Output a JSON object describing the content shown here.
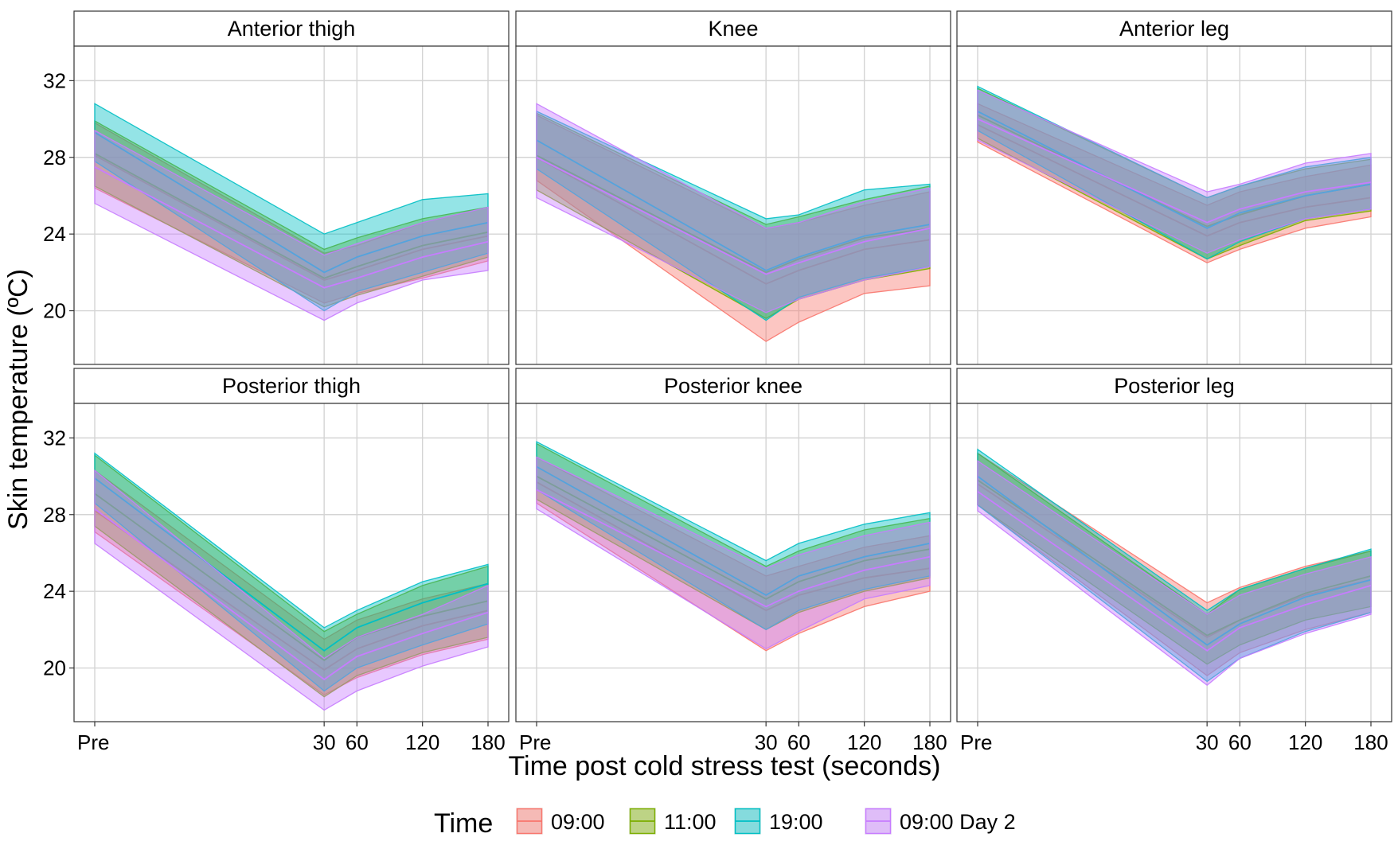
{
  "chart_data": {
    "type": "area",
    "title": "",
    "xlabel": "Time post cold stress test (seconds)",
    "ylabel": "Skin temperature (ºC)",
    "ylim": [
      17.2,
      33.8
    ],
    "y_ticks": [
      20,
      24,
      28,
      32
    ],
    "x_positions": [
      0,
      30,
      60,
      120,
      180
    ],
    "x_tick_labels": [
      "Pre",
      "30",
      "60",
      "120",
      "180"
    ],
    "x_display_positions": [
      -180,
      30,
      60,
      120,
      180
    ],
    "legend": {
      "title": "Time",
      "position": "bottom",
      "entries": [
        {
          "name": "09:00",
          "fill": "#F8766D",
          "stroke": "#F8766D"
        },
        {
          "name": "11:00",
          "fill": "#7CAE00",
          "stroke": "#7CAE00"
        },
        {
          "name": "19:00",
          "fill": "#00BFC4",
          "stroke": "#00BFC4"
        },
        {
          "name": "09:00 Day 2",
          "fill": "#C77CFF",
          "stroke": "#C77CFF"
        }
      ]
    },
    "panels": [
      {
        "title": "Anterior thigh",
        "series": [
          {
            "name": "09:00",
            "mean": [
              28.1,
              21.6,
              22.1,
              23.2,
              23.9
            ],
            "lower": [
              26.4,
              20.4,
              20.9,
              21.7,
              22.6
            ],
            "upper": [
              29.8,
              23.0,
              23.4,
              24.6,
              25.4
            ]
          },
          {
            "name": "11:00",
            "mean": [
              28.2,
              21.7,
              22.3,
              23.4,
              24.1
            ],
            "lower": [
              26.5,
              20.2,
              20.8,
              21.8,
              22.8
            ],
            "upper": [
              29.9,
              23.2,
              23.8,
              24.8,
              25.4
            ]
          },
          {
            "name": "19:00",
            "mean": [
              29.3,
              22.0,
              22.8,
              23.9,
              24.6
            ],
            "lower": [
              27.8,
              20.0,
              21.0,
              22.0,
              23.0
            ],
            "upper": [
              30.8,
              24.0,
              24.6,
              25.8,
              26.1
            ]
          },
          {
            "name": "09:00 Day 2",
            "mean": [
              27.5,
              21.2,
              21.7,
              22.8,
              23.6
            ],
            "lower": [
              25.6,
              19.5,
              20.4,
              21.6,
              22.1
            ],
            "upper": [
              29.4,
              22.9,
              23.5,
              24.6,
              25.4
            ]
          }
        ]
      },
      {
        "title": "Knee",
        "series": [
          {
            "name": "09:00",
            "mean": [
              28.0,
              21.4,
              22.1,
              23.2,
              23.7
            ],
            "lower": [
              26.8,
              18.4,
              19.4,
              20.9,
              21.3
            ],
            "upper": [
              30.2,
              24.3,
              24.6,
              25.5,
              26.2
            ]
          },
          {
            "name": "11:00",
            "mean": [
              28.1,
              22.0,
              22.7,
              23.8,
              24.3
            ],
            "lower": [
              26.3,
              19.6,
              20.6,
              21.6,
              22.2
            ],
            "upper": [
              30.3,
              24.5,
              24.9,
              25.8,
              26.5
            ]
          },
          {
            "name": "19:00",
            "mean": [
              28.9,
              22.1,
              22.8,
              23.9,
              24.5
            ],
            "lower": [
              27.4,
              19.5,
              20.7,
              21.7,
              22.3
            ],
            "upper": [
              30.4,
              24.8,
              25.0,
              26.3,
              26.6
            ]
          },
          {
            "name": "09:00 Day 2",
            "mean": [
              28.0,
              21.9,
              22.5,
              23.6,
              24.3
            ],
            "lower": [
              25.9,
              19.9,
              20.6,
              21.6,
              22.3
            ],
            "upper": [
              30.8,
              24.3,
              24.6,
              25.7,
              26.4
            ]
          }
        ]
      },
      {
        "title": "Anterior leg",
        "series": [
          {
            "name": "09:00",
            "mean": [
              29.7,
              23.9,
              24.6,
              25.4,
              25.9
            ],
            "lower": [
              28.8,
              22.5,
              23.2,
              24.3,
              24.9
            ],
            "upper": [
              30.8,
              25.5,
              26.2,
              27.0,
              27.6
            ]
          },
          {
            "name": "11:00",
            "mean": [
              30.2,
              24.4,
              25.0,
              26.0,
              26.6
            ],
            "lower": [
              29.0,
              22.7,
              23.4,
              24.7,
              25.2
            ],
            "upper": [
              31.6,
              25.9,
              26.5,
              27.4,
              27.9
            ]
          },
          {
            "name": "19:00",
            "mean": [
              30.4,
              24.3,
              25.1,
              26.0,
              26.6
            ],
            "lower": [
              29.4,
              22.7,
              23.6,
              24.8,
              25.3
            ],
            "upper": [
              31.7,
              25.9,
              26.5,
              27.5,
              28.0
            ]
          },
          {
            "name": "09:00 Day 2",
            "mean": [
              30.0,
              24.6,
              25.3,
              26.2,
              26.7
            ],
            "lower": [
              28.9,
              23.0,
              23.7,
              24.8,
              25.3
            ],
            "upper": [
              31.5,
              26.2,
              26.6,
              27.7,
              28.2
            ]
          }
        ]
      },
      {
        "title": "Posterior thigh",
        "series": [
          {
            "name": "09:00",
            "mean": [
              28.2,
              19.9,
              21.0,
              22.2,
              23.0
            ],
            "lower": [
              27.1,
              18.6,
              19.5,
              20.7,
              21.5
            ],
            "upper": [
              30.3,
              21.5,
              22.5,
              23.6,
              24.4
            ]
          },
          {
            "name": "11:00",
            "mean": [
              29.1,
              20.4,
              21.6,
              22.7,
              23.5
            ],
            "lower": [
              27.4,
              18.5,
              19.6,
              20.8,
              21.6
            ],
            "upper": [
              31.1,
              21.9,
              22.8,
              24.3,
              25.3
            ]
          },
          {
            "name": "19:00",
            "mean": [
              29.9,
              20.9,
              22.1,
              23.4,
              24.4
            ],
            "lower": [
              28.6,
              18.8,
              20.0,
              21.2,
              22.3
            ],
            "upper": [
              31.2,
              22.1,
              23.0,
              24.5,
              25.4
            ]
          },
          {
            "name": "09:00 Day 2",
            "mean": [
              28.3,
              19.4,
              20.6,
              21.8,
              22.9
            ],
            "lower": [
              26.5,
              17.8,
              18.8,
              20.1,
              21.1
            ],
            "upper": [
              30.3,
              20.5,
              21.6,
              22.8,
              24.3
            ]
          }
        ]
      },
      {
        "title": "Posterior knee",
        "series": [
          {
            "name": "09:00",
            "mean": [
              29.7,
              23.0,
              23.8,
              24.7,
              25.2
            ],
            "lower": [
              28.6,
              20.9,
              21.8,
              23.2,
              24.0
            ],
            "upper": [
              31.0,
              24.8,
              25.3,
              26.3,
              26.9
            ]
          },
          {
            "name": "11:00",
            "mean": [
              30.0,
              23.6,
              24.5,
              25.6,
              26.2
            ],
            "lower": [
              28.8,
              22.0,
              22.9,
              24.0,
              24.7
            ],
            "upper": [
              31.7,
              25.3,
              26.1,
              27.2,
              27.8
            ]
          },
          {
            "name": "19:00",
            "mean": [
              30.5,
              23.8,
              24.8,
              25.8,
              26.5
            ],
            "lower": [
              29.3,
              22.0,
              23.0,
              24.1,
              24.8
            ],
            "upper": [
              31.8,
              25.6,
              26.5,
              27.5,
              28.1
            ]
          },
          {
            "name": "09:00 Day 2",
            "mean": [
              29.3,
              23.2,
              24.0,
              25.1,
              25.8
            ],
            "lower": [
              28.3,
              21.0,
              21.9,
              23.6,
              24.3
            ],
            "upper": [
              31.0,
              25.2,
              25.9,
              26.9,
              27.6
            ]
          }
        ]
      },
      {
        "title": "Posterior leg",
        "series": [
          {
            "name": "09:00",
            "mean": [
              29.6,
              21.6,
              22.5,
              23.8,
              24.6
            ],
            "lower": [
              28.5,
              19.6,
              20.8,
              22.0,
              22.9
            ],
            "upper": [
              31.2,
              23.4,
              24.2,
              25.3,
              26.1
            ]
          },
          {
            "name": "11:00",
            "mean": [
              29.8,
              21.7,
              22.5,
              23.9,
              24.8
            ],
            "lower": [
              28.5,
              20.2,
              21.2,
              22.5,
              23.2
            ],
            "upper": [
              31.2,
              22.8,
              24.1,
              25.2,
              26.1
            ]
          },
          {
            "name": "19:00",
            "mean": [
              30.0,
              21.2,
              22.3,
              23.7,
              24.6
            ],
            "lower": [
              28.5,
              19.3,
              20.5,
              21.9,
              22.9
            ],
            "upper": [
              31.4,
              23.0,
              24.1,
              25.2,
              26.2
            ]
          },
          {
            "name": "09:00 Day 2",
            "mean": [
              29.2,
              20.9,
              22.1,
              23.3,
              24.3
            ],
            "lower": [
              28.2,
              19.1,
              20.5,
              21.8,
              22.8
            ],
            "upper": [
              30.8,
              22.8,
              23.8,
              24.9,
              25.8
            ]
          }
        ]
      }
    ]
  }
}
